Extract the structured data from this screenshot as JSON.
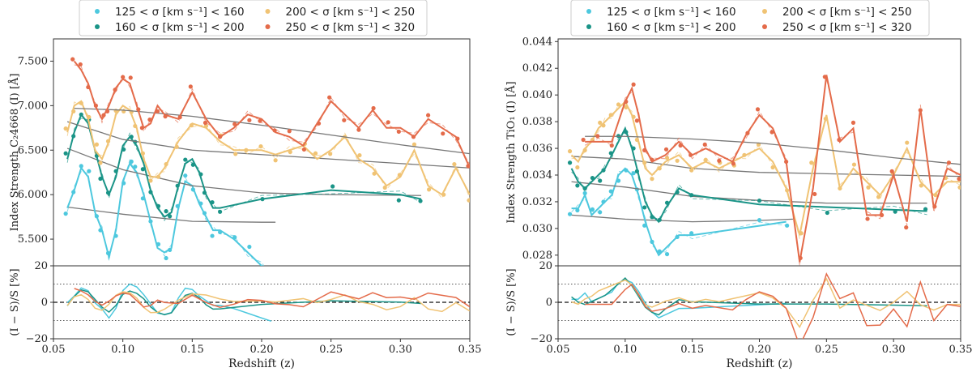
{
  "chart_data": [
    {
      "type": "line",
      "panel": "left",
      "xlabel": "Redshift (z)",
      "ylabel": "Index Strength C₂4668 (I) [Å]",
      "ylabel_residual": "(I − S)/S [%]",
      "xlim": [
        0.05,
        0.35
      ],
      "ylim": [
        5.2,
        7.75
      ],
      "residual_ylim": [
        -20,
        20
      ],
      "xticks": [
        "0.05",
        "0.10",
        "0.15",
        "0.20",
        "0.25",
        "0.30",
        "0.35"
      ],
      "yticks": [
        "5.500",
        "6.000",
        "6.500",
        "7.000",
        "7.500"
      ],
      "residual_yticks": [
        "20",
        "0",
        "−20"
      ],
      "legend": {
        "placement": "top-center",
        "entries": [
          "125 < σ [km s⁻¹] < 160",
          "160 < σ [km s⁻¹] < 200",
          "200 < σ [km s⁻¹] < 250",
          "250 < σ [km s⁻¹] < 320"
        ]
      },
      "series": [
        {
          "name": "125 < σ [km s⁻¹] < 160",
          "color": "#4dc8de",
          "x": [
            0.06,
            0.065,
            0.07,
            0.075,
            0.08,
            0.085,
            0.09,
            0.095,
            0.1,
            0.105,
            0.11,
            0.115,
            0.12,
            0.125,
            0.13,
            0.135,
            0.14,
            0.145,
            0.15,
            0.155,
            0.16,
            0.165,
            0.17,
            0.18,
            0.19,
            0.2,
            0.207
          ],
          "y": [
            5.85,
            6.05,
            6.3,
            6.2,
            5.8,
            5.6,
            5.3,
            5.6,
            6.15,
            6.35,
            6.25,
            6.0,
            5.7,
            5.4,
            5.35,
            5.4,
            5.85,
            6.15,
            6.1,
            5.9,
            5.75,
            5.6,
            5.6,
            5.5,
            5.35,
            5.2,
            5.1
          ],
          "smooth_x": [
            0.06,
            0.1,
            0.15,
            0.2,
            0.21
          ],
          "smooth_y": [
            5.86,
            5.78,
            5.7,
            5.69,
            5.69
          ]
        },
        {
          "name": "160 < σ [km s⁻¹] < 200",
          "color": "#1a9487",
          "x": [
            0.06,
            0.065,
            0.07,
            0.075,
            0.08,
            0.085,
            0.09,
            0.095,
            0.1,
            0.105,
            0.11,
            0.115,
            0.12,
            0.125,
            0.13,
            0.135,
            0.14,
            0.145,
            0.15,
            0.155,
            0.16,
            0.165,
            0.17,
            0.2,
            0.25,
            0.3,
            0.315
          ],
          "y": [
            6.4,
            6.7,
            6.9,
            6.8,
            6.5,
            6.2,
            6.0,
            6.2,
            6.55,
            6.65,
            6.55,
            6.35,
            6.05,
            5.85,
            5.75,
            5.8,
            6.1,
            6.35,
            6.4,
            6.25,
            6.0,
            5.85,
            5.85,
            5.95,
            6.05,
            6.0,
            5.95
          ],
          "smooth_x": [
            0.06,
            0.1,
            0.15,
            0.2,
            0.25,
            0.315
          ],
          "smooth_y": [
            6.52,
            6.28,
            6.1,
            6.02,
            6.0,
            5.99
          ]
        },
        {
          "name": "200 < σ [km s⁻¹] < 250",
          "color": "#f0c374",
          "x": [
            0.06,
            0.065,
            0.07,
            0.075,
            0.08,
            0.085,
            0.09,
            0.095,
            0.1,
            0.105,
            0.11,
            0.115,
            0.12,
            0.125,
            0.13,
            0.14,
            0.15,
            0.16,
            0.17,
            0.18,
            0.19,
            0.2,
            0.21,
            0.22,
            0.23,
            0.24,
            0.25,
            0.26,
            0.27,
            0.28,
            0.29,
            0.3,
            0.31,
            0.32,
            0.33,
            0.34,
            0.35
          ],
          "y": [
            6.7,
            7.0,
            7.05,
            6.85,
            6.5,
            6.4,
            6.6,
            6.9,
            7.0,
            6.95,
            6.75,
            6.4,
            6.2,
            6.2,
            6.3,
            6.6,
            6.8,
            6.75,
            6.6,
            6.5,
            6.5,
            6.5,
            6.45,
            6.5,
            6.55,
            6.4,
            6.5,
            6.65,
            6.4,
            6.3,
            6.1,
            6.2,
            6.5,
            6.1,
            6.0,
            6.3,
            6.0
          ],
          "smooth_x": [
            0.06,
            0.1,
            0.15,
            0.2,
            0.25,
            0.3,
            0.35
          ],
          "smooth_y": [
            6.82,
            6.62,
            6.5,
            6.45,
            6.4,
            6.35,
            6.3
          ]
        },
        {
          "name": "250 < σ [km s⁻¹] < 320",
          "color": "#e46b4a",
          "x": [
            0.065,
            0.07,
            0.075,
            0.08,
            0.085,
            0.09,
            0.095,
            0.1,
            0.105,
            0.11,
            0.115,
            0.12,
            0.125,
            0.13,
            0.14,
            0.15,
            0.16,
            0.17,
            0.18,
            0.19,
            0.2,
            0.21,
            0.22,
            0.23,
            0.24,
            0.25,
            0.26,
            0.27,
            0.28,
            0.29,
            0.3,
            0.31,
            0.32,
            0.33,
            0.34,
            0.35
          ],
          "y": [
            7.5,
            7.4,
            7.25,
            7.0,
            6.85,
            7.0,
            7.2,
            7.3,
            7.25,
            7.0,
            6.75,
            6.8,
            7.0,
            6.9,
            6.85,
            7.15,
            6.85,
            6.65,
            6.75,
            6.9,
            6.85,
            6.7,
            6.65,
            6.55,
            6.8,
            7.05,
            6.9,
            6.75,
            6.95,
            6.75,
            6.75,
            6.65,
            6.85,
            6.75,
            6.65,
            6.3
          ],
          "smooth_x": [
            0.065,
            0.1,
            0.15,
            0.2,
            0.25,
            0.3,
            0.35
          ],
          "smooth_y": [
            6.97,
            6.95,
            6.88,
            6.78,
            6.67,
            6.56,
            6.46
          ]
        }
      ]
    },
    {
      "type": "line",
      "panel": "right",
      "xlabel": "Redshift (z)",
      "ylabel": "Index Strength TiO₁ (I) [Å]",
      "ylabel_residual": "(I − S)/S [%]",
      "xlim": [
        0.05,
        0.35
      ],
      "ylim": [
        0.0272,
        0.0442
      ],
      "residual_ylim": [
        -20,
        20
      ],
      "xticks": [
        "0.05",
        "0.10",
        "0.15",
        "0.20",
        "0.25",
        "0.30",
        "0.35"
      ],
      "yticks": [
        "0.028",
        "0.030",
        "0.032",
        "0.034",
        "0.036",
        "0.038",
        "0.040",
        "0.042",
        "0.044"
      ],
      "residual_yticks": [
        "20",
        "0",
        "−20"
      ],
      "legend": {
        "placement": "top-center",
        "entries": [
          "125 < σ [km s⁻¹] < 160",
          "160 < σ [km s⁻¹] < 200",
          "200 < σ [km s⁻¹] < 250",
          "250 < σ [km s⁻¹] < 320"
        ]
      },
      "series": [
        {
          "name": "125 < σ [km s⁻¹] < 160",
          "color": "#4dc8de",
          "x": [
            0.06,
            0.065,
            0.07,
            0.075,
            0.08,
            0.085,
            0.09,
            0.095,
            0.1,
            0.105,
            0.11,
            0.115,
            0.12,
            0.125,
            0.13,
            0.14,
            0.15,
            0.2,
            0.22
          ],
          "y": [
            0.0315,
            0.0315,
            0.0325,
            0.031,
            0.0315,
            0.032,
            0.0325,
            0.034,
            0.0345,
            0.034,
            0.0325,
            0.0305,
            0.029,
            0.028,
            0.0285,
            0.0295,
            0.0295,
            0.0302,
            0.0305
          ],
          "smooth_x": [
            0.06,
            0.1,
            0.15,
            0.2,
            0.225
          ],
          "smooth_y": [
            0.031,
            0.0307,
            0.0305,
            0.0306,
            0.0307
          ]
        },
        {
          "name": "160 < σ [km s⁻¹] < 200",
          "color": "#1a9487",
          "x": [
            0.06,
            0.065,
            0.07,
            0.075,
            0.08,
            0.085,
            0.09,
            0.095,
            0.1,
            0.105,
            0.11,
            0.115,
            0.12,
            0.125,
            0.13,
            0.14,
            0.15,
            0.2,
            0.25,
            0.3,
            0.325
          ],
          "y": [
            0.0345,
            0.0335,
            0.033,
            0.0335,
            0.034,
            0.0345,
            0.0355,
            0.0365,
            0.0375,
            0.036,
            0.034,
            0.032,
            0.031,
            0.0305,
            0.0315,
            0.033,
            0.0325,
            0.0318,
            0.0316,
            0.0314,
            0.0313
          ],
          "smooth_x": [
            0.06,
            0.1,
            0.15,
            0.2,
            0.25,
            0.325
          ],
          "smooth_y": [
            0.0335,
            0.0331,
            0.0324,
            0.0321,
            0.0319,
            0.0319
          ]
        },
        {
          "name": "200 < σ [km s⁻¹] < 250",
          "color": "#f0c374",
          "x": [
            0.06,
            0.065,
            0.07,
            0.075,
            0.08,
            0.085,
            0.09,
            0.095,
            0.1,
            0.105,
            0.11,
            0.115,
            0.12,
            0.125,
            0.13,
            0.14,
            0.15,
            0.16,
            0.17,
            0.18,
            0.19,
            0.2,
            0.21,
            0.22,
            0.23,
            0.24,
            0.25,
            0.26,
            0.27,
            0.28,
            0.29,
            0.3,
            0.31,
            0.32,
            0.33,
            0.34,
            0.35
          ],
          "y": [
            0.0355,
            0.035,
            0.036,
            0.0365,
            0.0375,
            0.038,
            0.0385,
            0.039,
            0.0395,
            0.0385,
            0.0365,
            0.0345,
            0.034,
            0.0345,
            0.035,
            0.0355,
            0.0345,
            0.035,
            0.0345,
            0.035,
            0.0355,
            0.036,
            0.035,
            0.033,
            0.0295,
            0.0345,
            0.0385,
            0.033,
            0.0345,
            0.0335,
            0.0325,
            0.034,
            0.036,
            0.0335,
            0.0325,
            0.0335,
            0.0335
          ],
          "smooth_x": [
            0.06,
            0.1,
            0.15,
            0.2,
            0.25,
            0.3,
            0.35
          ],
          "smooth_y": [
            0.0354,
            0.0352,
            0.0345,
            0.0342,
            0.0341,
            0.034,
            0.0339
          ]
        },
        {
          "name": "250 < σ [km s⁻¹] < 320",
          "color": "#e46b4a",
          "x": [
            0.07,
            0.08,
            0.09,
            0.1,
            0.105,
            0.11,
            0.115,
            0.12,
            0.13,
            0.14,
            0.15,
            0.16,
            0.17,
            0.18,
            0.19,
            0.2,
            0.21,
            0.22,
            0.23,
            0.24,
            0.25,
            0.26,
            0.27,
            0.28,
            0.29,
            0.3,
            0.31,
            0.32,
            0.33,
            0.34,
            0.35
          ],
          "y": [
            0.0365,
            0.0365,
            0.0365,
            0.0395,
            0.0405,
            0.0385,
            0.036,
            0.035,
            0.0355,
            0.0365,
            0.0355,
            0.036,
            0.0355,
            0.035,
            0.037,
            0.0385,
            0.0375,
            0.035,
            0.0275,
            0.033,
            0.0415,
            0.0365,
            0.0375,
            0.031,
            0.031,
            0.034,
            0.0305,
            0.039,
            0.0315,
            0.0345,
            0.034
          ],
          "smooth_x": [
            0.07,
            0.1,
            0.15,
            0.2,
            0.25,
            0.3,
            0.35
          ],
          "smooth_y": [
            0.0369,
            0.0369,
            0.0367,
            0.0364,
            0.0359,
            0.0353,
            0.0348
          ]
        }
      ]
    }
  ]
}
